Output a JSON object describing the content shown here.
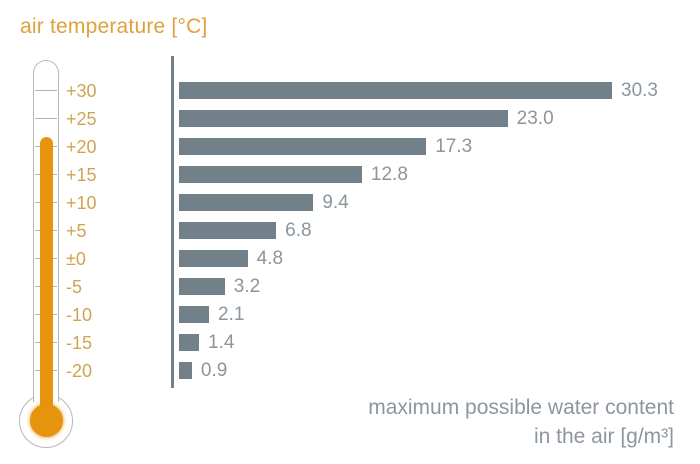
{
  "title": "air temperature [°C]",
  "caption": {
    "line1": "maximum possible water content",
    "line2": "in the air [g/m³]"
  },
  "colors": {
    "title_orange": "#DFA13C",
    "temp_label_gold": "#D0A452",
    "mercury_orange": "#E6930D",
    "bar_slate": "#72808A",
    "axis_slate": "#72808A",
    "value_gray": "#8C959C",
    "caption_gray": "#8D969E",
    "outline_gray": "#B8B8B8",
    "tick_gray": "#ADB2B5"
  },
  "thermometer": {
    "name": "thermometer",
    "fill_from_label": "+20",
    "fill_to_label": "-20"
  },
  "chart_data": {
    "type": "bar",
    "orientation": "horizontal",
    "title": "air temperature [°C]",
    "xlabel": "maximum possible water content in the air [g/m³]",
    "ylabel": "air temperature [°C]",
    "categories": [
      "+30",
      "+25",
      "+20",
      "+15",
      "+10",
      "+5",
      "±0",
      "-5",
      "-10",
      "-15",
      "-20"
    ],
    "values": [
      30.3,
      23.0,
      17.3,
      12.8,
      9.4,
      6.8,
      4.8,
      3.2,
      2.1,
      1.4,
      0.9
    ],
    "value_labels": [
      "30.3",
      "23.0",
      "17.3",
      "12.8",
      "9.4",
      "6.8",
      "4.8",
      "3.2",
      "2.1",
      "1.4",
      "0.9"
    ],
    "xlim": [
      0,
      31
    ],
    "grid": false,
    "legend": "none"
  }
}
